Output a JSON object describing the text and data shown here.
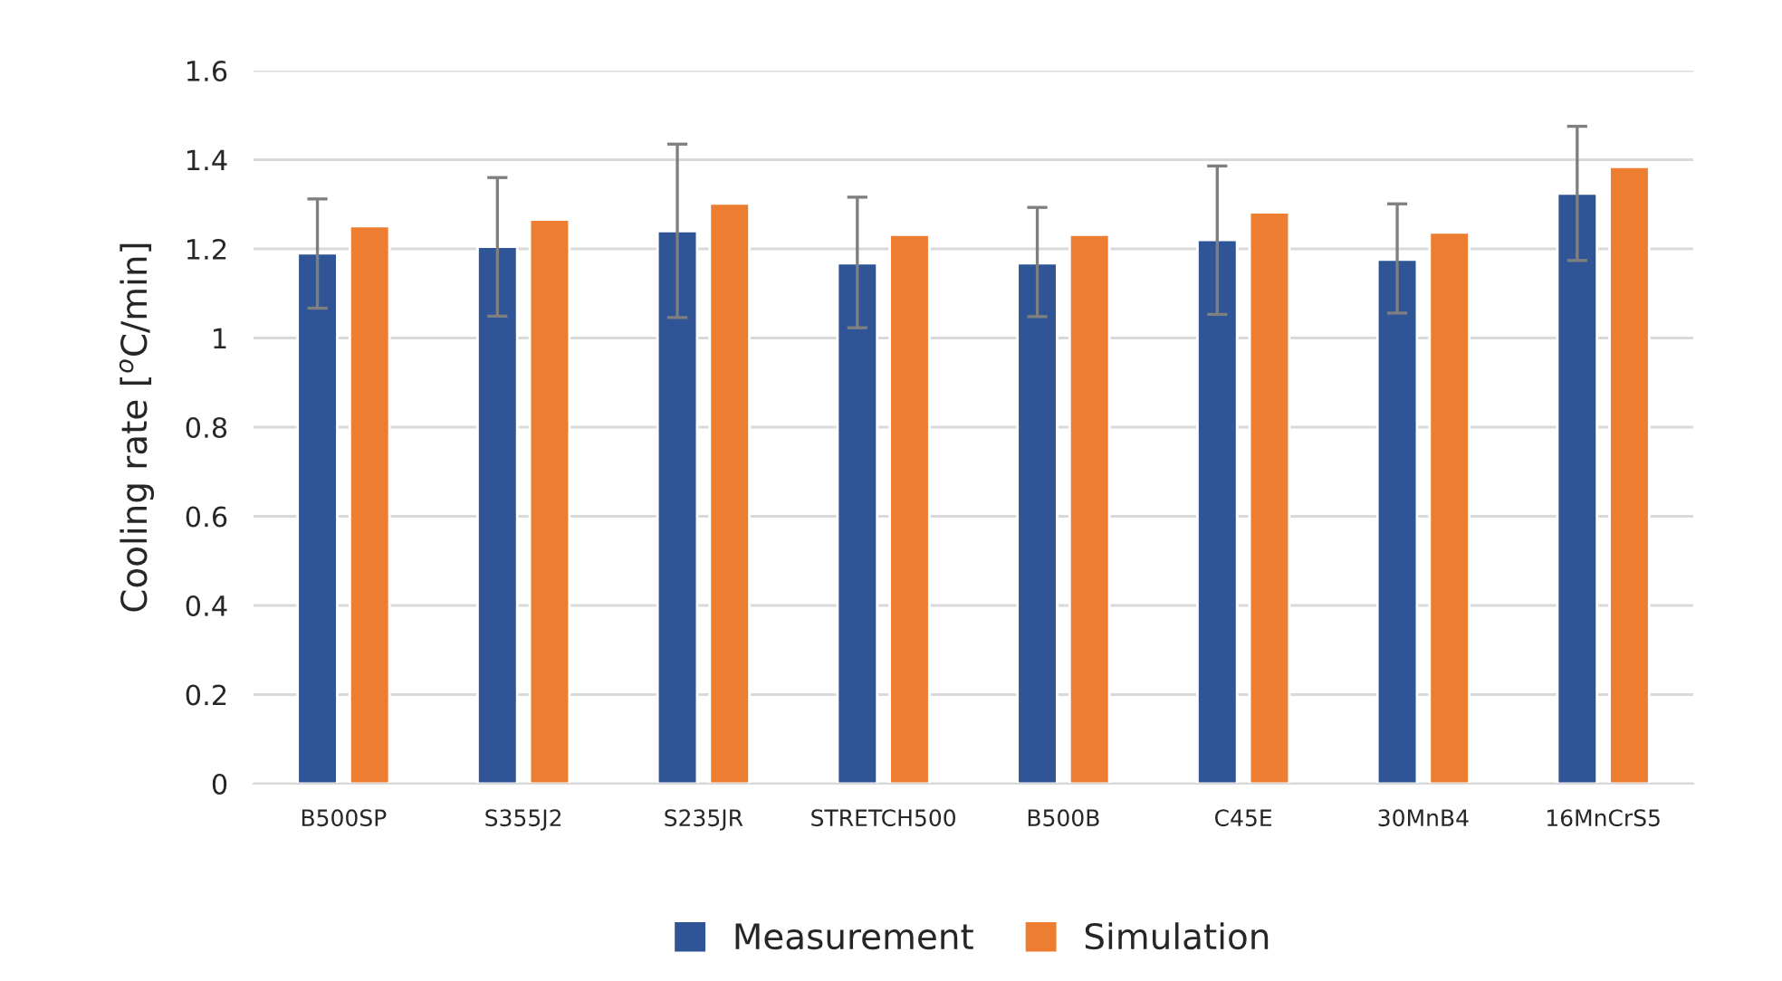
{
  "chart_data": {
    "type": "bar",
    "ylabel": "Cooling rate [$^{o}$C/min]",
    "categories": [
      "B500SP",
      "S355J2",
      "S235JR",
      "STRETCH500",
      "B500B",
      "C45E",
      "30MnB4",
      "16MnCrS5"
    ],
    "series": [
      {
        "name": "Measurement",
        "color": "#2f5597",
        "values": [
          1.19,
          1.205,
          1.24,
          1.168,
          1.168,
          1.22,
          1.176,
          1.324
        ],
        "errors": [
          [
            1.067,
            1.312
          ],
          [
            1.049,
            1.36
          ],
          [
            1.046,
            1.435
          ],
          [
            1.023,
            1.316
          ],
          [
            1.048,
            1.293
          ],
          [
            1.053,
            1.386
          ],
          [
            1.056,
            1.301
          ],
          [
            1.174,
            1.475
          ]
        ]
      },
      {
        "name": "Simulation",
        "color": "#ed7d31",
        "values": [
          1.251,
          1.266,
          1.302,
          1.232,
          1.232,
          1.282,
          1.237,
          1.384
        ]
      }
    ],
    "ylim": [
      0,
      1.6
    ],
    "yticks": [
      0,
      {
        "value": 0.2,
        "label": "0.2"
      },
      {
        "value": 0.4,
        "label": "0.4"
      },
      {
        "value": 0.6,
        "label": "0.6"
      },
      {
        "value": 0.8,
        "label": "0.8"
      },
      1,
      {
        "value": 1.2,
        "label": "1.2"
      },
      {
        "value": 1.4,
        "label": "1.4"
      },
      {
        "value": 1.6,
        "label": "1.6"
      }
    ],
    "grid": "y",
    "legend": "bottom"
  }
}
